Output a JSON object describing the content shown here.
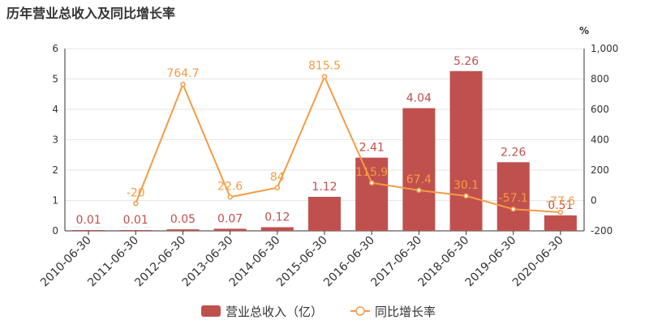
{
  "title": "历年营业总收入及同比增长率",
  "right_axis_unit": "%",
  "colors": {
    "bar": "#c0504d",
    "line": "#f59b44",
    "grid": "#e6e6e6",
    "axis": "#333333"
  },
  "chart_data": {
    "type": "bar",
    "categories": [
      "2010-06-30",
      "2011-06-30",
      "2012-06-30",
      "2013-06-30",
      "2014-06-30",
      "2015-06-30",
      "2016-06-30",
      "2017-06-30",
      "2018-06-30",
      "2019-06-30",
      "2020-06-30"
    ],
    "series": [
      {
        "name": "营业总收入（亿）",
        "type": "bar",
        "axis": "left",
        "values": [
          0.01,
          0.01,
          0.05,
          0.07,
          0.12,
          1.12,
          2.41,
          4.04,
          5.26,
          2.26,
          0.51
        ],
        "labels": [
          "0.01",
          "0.01",
          "0.05",
          "0.07",
          "0.12",
          "1.12",
          "2.41",
          "4.04",
          "5.26",
          "2.26",
          "0.51"
        ]
      },
      {
        "name": "同比增长率",
        "type": "line",
        "axis": "right",
        "values": [
          null,
          -20,
          764.7,
          22.6,
          84,
          815.5,
          115.9,
          67.4,
          30.1,
          -57.1,
          -77.6
        ],
        "labels": [
          "",
          "-20",
          "764.7",
          "22.6",
          "84",
          "815.5",
          "115.9",
          "67.4",
          "30.1",
          "-57.1",
          "-77.6"
        ]
      }
    ],
    "y_left": {
      "min": 0,
      "max": 6,
      "ticks": [
        "0",
        "1",
        "2",
        "3",
        "4",
        "5",
        "6"
      ]
    },
    "y_right": {
      "min": -200,
      "max": 1000,
      "ticks": [
        "-200",
        "0",
        "200",
        "400",
        "600",
        "800",
        "1,000"
      ]
    },
    "grid": true,
    "legend": "bottom"
  }
}
